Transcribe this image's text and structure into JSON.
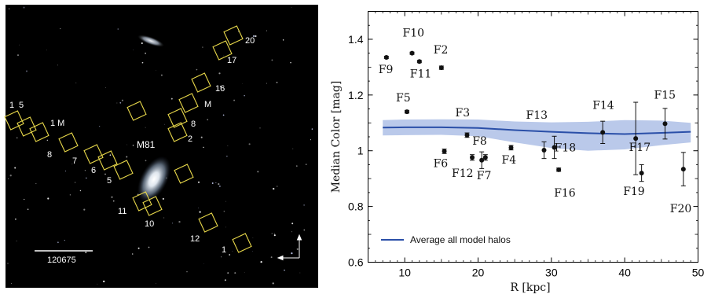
{
  "image_panel": {
    "galaxy_label": "M81",
    "scalebar_label": "120675",
    "field_labels": [
      "1",
      "5",
      "1 M",
      "8",
      "7",
      "6",
      "5",
      "11",
      "10",
      "2",
      "8",
      "M",
      "16",
      "17",
      "20",
      "12",
      "1"
    ]
  },
  "chart_data": {
    "type": "scatter",
    "xlabel": "R [kpc]",
    "ylabel": "Median Color [mag]",
    "xlim": [
      5,
      50
    ],
    "ylim": [
      0.6,
      1.5
    ],
    "xticks": [
      10,
      20,
      30,
      40,
      50
    ],
    "yticks": [
      0.6,
      0.8,
      1,
      1.2,
      1.4
    ],
    "grid": false,
    "legend": {
      "placement": "bottom-left",
      "entries": [
        "Average all model halos"
      ]
    },
    "colors": {
      "model_line": "#2a4fa8",
      "model_band": "#b3c3e8",
      "points": "#111111"
    },
    "points": [
      {
        "label": "F9",
        "x": 7.5,
        "y": 1.335,
        "err": 0.004
      },
      {
        "label": "F10",
        "x": 11,
        "y": 1.35,
        "err": 0.004
      },
      {
        "label": "F11",
        "x": 12,
        "y": 1.32,
        "err": 0.004
      },
      {
        "label": "F2",
        "x": 15,
        "y": 1.298,
        "err": 0.006
      },
      {
        "label": "F5",
        "x": 10.3,
        "y": 1.14,
        "err": 0.005
      },
      {
        "label": "F6",
        "x": 15.4,
        "y": 0.998,
        "err": 0.008
      },
      {
        "label": "F3",
        "x": 18.5,
        "y": 1.056,
        "err": 0.008
      },
      {
        "label": "F12",
        "x": 19.2,
        "y": 0.976,
        "err": 0.01
      },
      {
        "label": "F8",
        "x": 20.5,
        "y": 0.966,
        "err": 0.03
      },
      {
        "label": "F7",
        "x": 21,
        "y": 0.976,
        "err": 0.01
      },
      {
        "label": "F4",
        "x": 24.5,
        "y": 1.011,
        "err": 0.008
      },
      {
        "label": "F13",
        "x": 29,
        "y": 1.002,
        "err": 0.03
      },
      {
        "label": "F18",
        "x": 30.4,
        "y": 1.012,
        "err": 0.04
      },
      {
        "label": "F16",
        "x": 31,
        "y": 0.932,
        "err": 0.006
      },
      {
        "label": "F14",
        "x": 37,
        "y": 1.066,
        "err": 0.04
      },
      {
        "label": "F19",
        "x": 41.5,
        "y": 1.044,
        "err": 0.13
      },
      {
        "label": "F17",
        "x": 42.3,
        "y": 0.92,
        "err": 0.03
      },
      {
        "label": "F15",
        "x": 45.5,
        "y": 1.097,
        "err": 0.055
      },
      {
        "label": "F20",
        "x": 48,
        "y": 0.934,
        "err": 0.06
      }
    ],
    "model": {
      "name": "Average all model halos",
      "x": [
        7,
        10,
        15,
        20,
        25,
        30,
        35,
        40,
        45,
        49
      ],
      "y": [
        1.083,
        1.084,
        1.084,
        1.082,
        1.074,
        1.068,
        1.063,
        1.06,
        1.064,
        1.068
      ],
      "band_low": [
        1.055,
        1.056,
        1.057,
        1.052,
        1.03,
        1.01,
        1.0,
        1.005,
        1.02,
        1.03
      ],
      "band_high": [
        1.11,
        1.112,
        1.113,
        1.112,
        1.105,
        1.102,
        1.104,
        1.11,
        1.108,
        1.1
      ]
    }
  }
}
